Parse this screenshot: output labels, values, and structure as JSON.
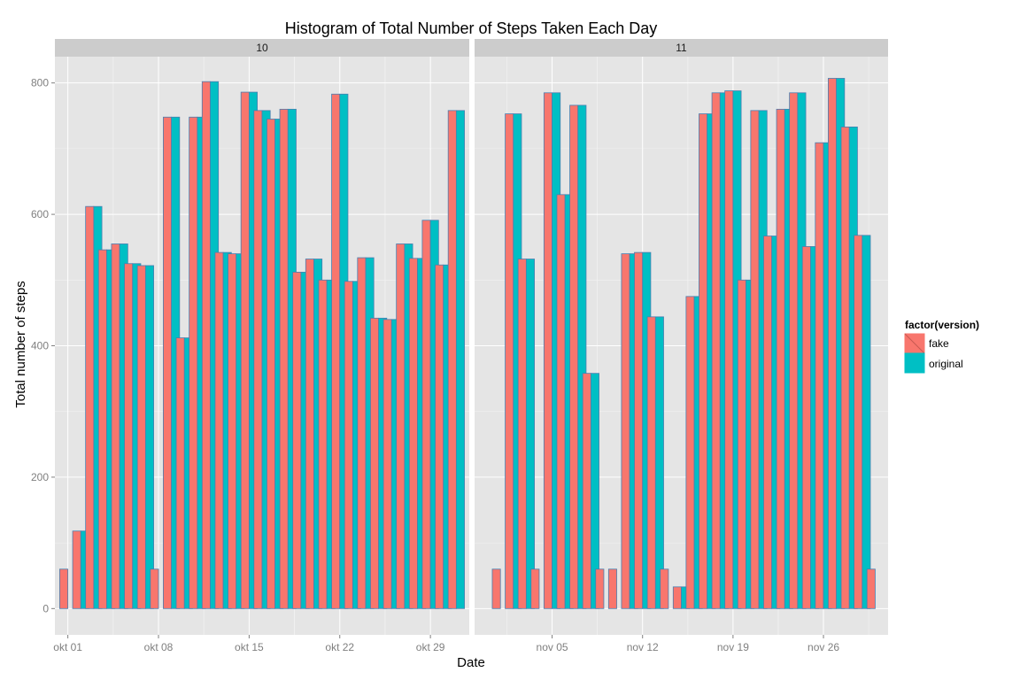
{
  "chart_data": {
    "type": "bar",
    "title": "Histogram of Total Number of Steps Taken Each Day",
    "xlabel": "Date",
    "ylabel": "Total number of steps",
    "ylim": [
      -40,
      840
    ],
    "yticks": [
      0,
      200,
      400,
      600,
      800
    ],
    "grid": true,
    "legend": {
      "title": "factor(version)",
      "placement": "right",
      "entries": [
        "fake",
        "original"
      ]
    },
    "series_colors": {
      "fake": "#F8766D",
      "original": "#00BFC4",
      "outline": "#4a7fb0"
    },
    "colors": {
      "panel": "#E5E5E5",
      "strip": "#CCCCCC",
      "grid": "#FFFFFF"
    },
    "panels": [
      {
        "label": "10",
        "x_range": [
          "2012-09-30",
          "2012-11-01"
        ],
        "x_ticks": [
          {
            "date": "2012-10-01",
            "label": "okt 01"
          },
          {
            "date": "2012-10-08",
            "label": "okt 08"
          },
          {
            "date": "2012-10-15",
            "label": "okt 15"
          },
          {
            "date": "2012-10-22",
            "label": "okt 22"
          },
          {
            "date": "2012-10-29",
            "label": "okt 29"
          }
        ],
        "dates": [
          "2012-10-01",
          "2012-10-02",
          "2012-10-03",
          "2012-10-04",
          "2012-10-05",
          "2012-10-06",
          "2012-10-07",
          "2012-10-08",
          "2012-10-09",
          "2012-10-10",
          "2012-10-11",
          "2012-10-12",
          "2012-10-13",
          "2012-10-14",
          "2012-10-15",
          "2012-10-16",
          "2012-10-17",
          "2012-10-18",
          "2012-10-19",
          "2012-10-20",
          "2012-10-21",
          "2012-10-22",
          "2012-10-23",
          "2012-10-24",
          "2012-10-25",
          "2012-10-26",
          "2012-10-27",
          "2012-10-28",
          "2012-10-29",
          "2012-10-30",
          "2012-10-31"
        ],
        "series": [
          {
            "name": "fake",
            "values": [
              60,
              118,
              612,
              546,
              555,
              525,
              522,
              60,
              748,
              412,
              748,
              802,
              542,
              540,
              786,
              758,
              745,
              760,
              512,
              532,
              500,
              783,
              498,
              534,
              442,
              440,
              555,
              533,
              591,
              523,
              758
            ]
          },
          {
            "name": "original",
            "values": [
              0,
              118,
              612,
              546,
              555,
              525,
              522,
              0,
              748,
              412,
              748,
              802,
              542,
              540,
              786,
              758,
              745,
              760,
              512,
              532,
              500,
              783,
              498,
              534,
              442,
              440,
              555,
              533,
              591,
              523,
              758
            ]
          }
        ]
      },
      {
        "label": "11",
        "x_range": [
          "2012-10-30",
          "2012-12-01"
        ],
        "x_ticks": [
          {
            "date": "2012-11-05",
            "label": "nov 05"
          },
          {
            "date": "2012-11-12",
            "label": "nov 12"
          },
          {
            "date": "2012-11-19",
            "label": "nov 19"
          },
          {
            "date": "2012-11-26",
            "label": "nov 26"
          }
        ],
        "dates": [
          "2012-11-01",
          "2012-11-02",
          "2012-11-03",
          "2012-11-04",
          "2012-11-05",
          "2012-11-06",
          "2012-11-07",
          "2012-11-08",
          "2012-11-09",
          "2012-11-10",
          "2012-11-11",
          "2012-11-12",
          "2012-11-13",
          "2012-11-14",
          "2012-11-15",
          "2012-11-16",
          "2012-11-17",
          "2012-11-18",
          "2012-11-19",
          "2012-11-20",
          "2012-11-21",
          "2012-11-22",
          "2012-11-23",
          "2012-11-24",
          "2012-11-25",
          "2012-11-26",
          "2012-11-27",
          "2012-11-28",
          "2012-11-29",
          "2012-11-30"
        ],
        "series": [
          {
            "name": "fake",
            "values": [
              60,
              753,
              532,
              60,
              785,
              630,
              766,
              358,
              60,
              60,
              540,
              542,
              444,
              60,
              33,
              475,
              753,
              785,
              788,
              500,
              758,
              567,
              760,
              785,
              551,
              709,
              807,
              733,
              568,
              60
            ]
          },
          {
            "name": "original",
            "values": [
              0,
              753,
              532,
              0,
              785,
              630,
              766,
              358,
              0,
              0,
              540,
              542,
              444,
              0,
              33,
              475,
              753,
              785,
              788,
              500,
              758,
              567,
              760,
              785,
              551,
              709,
              807,
              733,
              568,
              0
            ]
          }
        ]
      }
    ]
  }
}
